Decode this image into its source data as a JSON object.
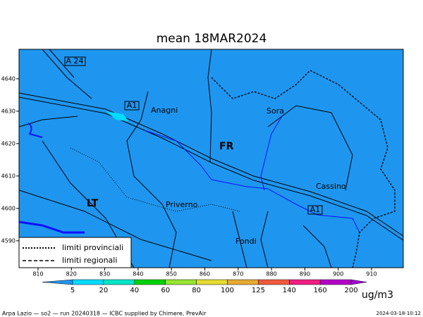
{
  "title": "mean 18MAR2024",
  "map": {
    "xlim": [
      804.3,
      919.5
    ],
    "ylim": [
      4581.7,
      4649.1
    ],
    "xticks": [
      810,
      820,
      830,
      840,
      850,
      860,
      870,
      880,
      890,
      900,
      910
    ],
    "yticks": [
      4590,
      4600,
      4610,
      4620,
      4630,
      4640
    ],
    "background": "#1e96f0",
    "labels": {
      "a24": "A 24",
      "a1_north": "A1",
      "a1_south": "A1",
      "anagni": "Anagni",
      "sora": "Sora",
      "fr": "FR",
      "cassino": "Cassino",
      "lt": "LT",
      "priverno": "Priverno",
      "fondi": "Fondi"
    },
    "legend": {
      "provincial": "limiti provinciali",
      "regional": "limiti regionali"
    }
  },
  "colorbar": {
    "levels": [
      5,
      20,
      40,
      60,
      80,
      100,
      125,
      140,
      160,
      200
    ],
    "colors": [
      "#1e96f0",
      "#00dcff",
      "#00e6c8",
      "#00d200",
      "#96e632",
      "#e6dc32",
      "#e6aa32",
      "#f05a3c",
      "#f01e82",
      "#b400c8",
      "#a000d2"
    ],
    "unit": "ug/m3"
  },
  "footer": {
    "left": "Arpa Lazio — so2 — run 20240318 — ICBC supplied by Chimere, PrevAir",
    "right": "2024-03-18-10:12"
  }
}
